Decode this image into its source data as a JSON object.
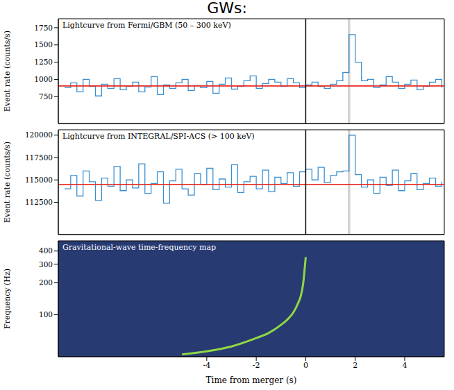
{
  "title": "GWs:",
  "chart_data": [
    {
      "type": "line",
      "title": "Lightcurve from Fermi/GBM (50 – 300 keV)",
      "y_label": "Event rate (counts/s)",
      "x": [
        -9.75,
        -9.5,
        -9.25,
        -9,
        -8.75,
        -8.5,
        -8.25,
        -8,
        -7.75,
        -7.5,
        -7.25,
        -7,
        -6.75,
        -6.5,
        -6.25,
        -6,
        -5.75,
        -5.5,
        -5.25,
        -5,
        -4.75,
        -4.5,
        -4.25,
        -4,
        -3.75,
        -3.5,
        -3.25,
        -3,
        -2.75,
        -2.5,
        -2.25,
        -2,
        -1.75,
        -1.5,
        -1.25,
        -1,
        -0.75,
        -0.5,
        -0.25,
        0,
        0.25,
        0.5,
        0.75,
        1,
        1.25,
        1.5,
        1.75,
        2,
        2.25,
        2.5,
        2.75,
        3,
        3.25,
        3.5,
        3.75,
        4,
        4.25,
        4.5,
        4.75,
        5,
        5.25,
        5.5
      ],
      "values": [
        880,
        950,
        820,
        1000,
        900,
        760,
        930,
        870,
        1010,
        850,
        900,
        960,
        820,
        890,
        1040,
        780,
        920,
        870,
        950,
        1000,
        840,
        910,
        880,
        970,
        800,
        930,
        1020,
        860,
        900,
        980,
        1050,
        870,
        940,
        1000,
        960,
        900,
        1010,
        950,
        880,
        920,
        960,
        900,
        870,
        930,
        980,
        1100,
        1650,
        1250,
        980,
        1000,
        880,
        920,
        1040,
        960,
        870,
        930,
        990,
        850,
        900,
        960,
        1000,
        880
      ],
      "color": "#3a8fd0",
      "line_style": "steps",
      "xlim": [
        -10,
        5.6
      ],
      "ylim": [
        360,
        1880
      ],
      "yticks": [
        750,
        1000,
        1250,
        1500,
        1750
      ],
      "tick_labels": "y",
      "hlines": [
        {
          "value": 905,
          "color": "#e8251d"
        }
      ],
      "vlines": [
        {
          "value": 0,
          "color": "#000000"
        }
      ],
      "spans": [
        {
          "from": 1.7,
          "to": 1.8,
          "color": "#c8c8c8"
        }
      ]
    },
    {
      "type": "line",
      "title": "Lightcurve from INTEGRAL/SPI-ACS (> 100 keV)",
      "y_label": "Event rate (counts/s)",
      "x": [
        -9.75,
        -9.5,
        -9.25,
        -9,
        -8.75,
        -8.5,
        -8.25,
        -8,
        -7.75,
        -7.5,
        -7.25,
        -7,
        -6.75,
        -6.5,
        -6.25,
        -6,
        -5.75,
        -5.5,
        -5.25,
        -5,
        -4.75,
        -4.5,
        -4.25,
        -4,
        -3.75,
        -3.5,
        -3.25,
        -3,
        -2.75,
        -2.5,
        -2.25,
        -2,
        -1.75,
        -1.5,
        -1.25,
        -1,
        -0.75,
        -0.5,
        -0.25,
        0,
        0.25,
        0.5,
        0.75,
        1,
        1.25,
        1.5,
        1.75,
        2,
        2.25,
        2.5,
        2.75,
        3,
        3.25,
        3.5,
        3.75,
        4,
        4.25,
        4.5,
        4.75,
        5,
        5.25,
        5.5
      ],
      "values": [
        114000,
        115500,
        113200,
        116000,
        114800,
        112700,
        115200,
        114300,
        116500,
        113800,
        115000,
        114100,
        116800,
        113500,
        114600,
        115900,
        112400,
        114900,
        116200,
        114000,
        113300,
        115700,
        114500,
        116300,
        113900,
        115100,
        114200,
        116700,
        113600,
        114800,
        115400,
        114000,
        116100,
        113700,
        115300,
        114600,
        115800,
        114300,
        115900,
        116200,
        115000,
        116400,
        114700,
        115500,
        115900,
        116000,
        120000,
        115600,
        114200,
        115000,
        113500,
        115300,
        114400,
        116100,
        113800,
        114900,
        115700,
        113900,
        114600,
        115200,
        114300,
        114800
      ],
      "color": "#3a8fd0",
      "line_style": "steps",
      "xlim": [
        -10,
        5.6
      ],
      "ylim": [
        108900,
        120600
      ],
      "yticks": [
        112500,
        115000,
        117500,
        120000
      ],
      "tick_labels": "y",
      "hlines": [
        {
          "value": 114500,
          "color": "#e8251d"
        }
      ],
      "vlines": [
        {
          "value": 0,
          "color": "#000000"
        }
      ],
      "spans": [
        {
          "from": 1.7,
          "to": 1.8,
          "color": "#c8c8c8"
        }
      ]
    },
    {
      "type": "line",
      "title": "Gravitational-wave time-frequency map",
      "x_label": "Time from merger (s)",
      "y_label": "Frequency (Hz)",
      "x": [
        -5,
        -4,
        -3,
        -2,
        -1.5,
        -1,
        -0.7,
        -0.5,
        -0.3,
        -0.2,
        -0.1,
        -0.05,
        0
      ],
      "values": [
        42,
        45,
        50,
        60,
        67,
        80,
        92,
        105,
        130,
        150,
        200,
        260,
        350
      ],
      "color": "#8fd744",
      "line_style": "solid",
      "log": "y",
      "xlim": [
        -10,
        5.6
      ],
      "ylim": [
        40,
        500
      ],
      "xticks": [
        -4,
        -2,
        0,
        2,
        4
      ],
      "yticks": [
        100,
        200,
        300,
        400
      ]
    }
  ]
}
